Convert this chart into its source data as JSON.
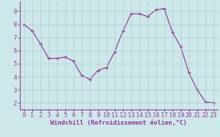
{
  "x": [
    0,
    1,
    2,
    3,
    4,
    5,
    6,
    7,
    8,
    9,
    10,
    11,
    12,
    13,
    14,
    15,
    16,
    17,
    18,
    19,
    20,
    21,
    22,
    23
  ],
  "y": [
    8.0,
    7.5,
    6.5,
    5.4,
    5.4,
    5.5,
    5.2,
    4.1,
    3.8,
    4.5,
    4.7,
    5.9,
    7.5,
    8.8,
    8.8,
    8.6,
    9.1,
    9.2,
    7.4,
    6.3,
    4.3,
    3.0,
    2.1,
    2.0
  ],
  "line_color": "#993399",
  "marker": "D",
  "marker_size": 2.0,
  "line_width": 0.9,
  "xlabel": "Windchill (Refroidissement éolien,°C)",
  "xlabel_fontsize": 6.5,
  "ylim": [
    1.5,
    9.75
  ],
  "xlim": [
    -0.5,
    23.5
  ],
  "yticks": [
    2,
    3,
    4,
    5,
    6,
    7,
    8,
    9
  ],
  "xticks": [
    0,
    1,
    2,
    3,
    4,
    5,
    6,
    7,
    8,
    9,
    10,
    11,
    12,
    13,
    14,
    15,
    16,
    17,
    18,
    19,
    20,
    21,
    22,
    23
  ],
  "background_color": "#cce8e8",
  "grid_color": "#aacccc",
  "tick_color": "#993399",
  "spine_color": "#993399",
  "tick_fontsize": 6.0,
  "axis_bgcolor": "#cce8e8"
}
